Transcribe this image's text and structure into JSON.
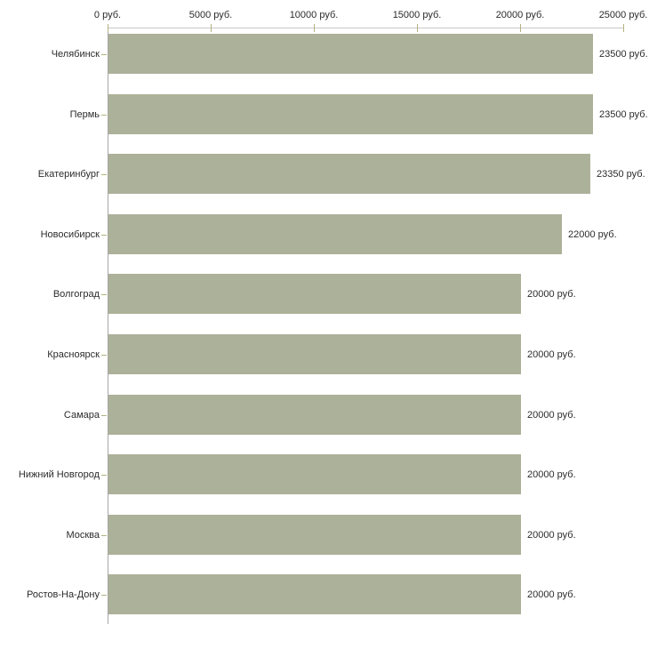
{
  "chart_data": {
    "type": "bar",
    "orientation": "horizontal",
    "title": "",
    "xlabel": "",
    "ylabel": "",
    "unit": "руб.",
    "grid": false,
    "legend": false,
    "categories": [
      "Челябинск",
      "Пермь",
      "Екатеринбург",
      "Новосибирск",
      "Волгоград",
      "Красноярск",
      "Самара",
      "Нижний Новгород",
      "Москва",
      "Ростов-На-Дону"
    ],
    "values": [
      23500,
      23500,
      23350,
      22000,
      20000,
      20000,
      20000,
      20000,
      20000,
      20000
    ],
    "value_labels": [
      "23500 руб.",
      "23500 руб.",
      "23350 руб.",
      "22000 руб.",
      "20000 руб.",
      "20000 руб.",
      "20000 руб.",
      "20000 руб.",
      "20000 руб.",
      "20000 руб."
    ],
    "x_axis": {
      "position": "top",
      "range": [
        0,
        25000
      ],
      "tick_values": [
        0,
        5000,
        10000,
        15000,
        20000,
        25000
      ],
      "tick_labels": [
        "0 руб.",
        "5000 руб.",
        "10000 руб.",
        "15000 руб.",
        "20000 руб.",
        "25000 руб."
      ]
    },
    "colors": {
      "bar": "#acb199",
      "x_axis_line": "#c9c9c9",
      "y_axis_line": "#a6a6a6",
      "tick": "#b2b284",
      "text": "#2b2b2b",
      "background": "#ffffff"
    }
  }
}
